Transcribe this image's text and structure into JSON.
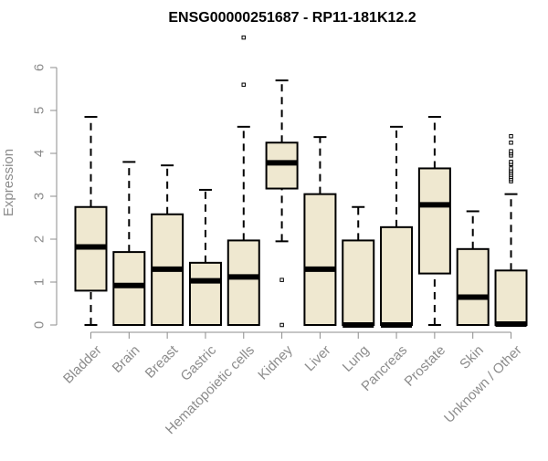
{
  "chart_data": {
    "type": "boxplot",
    "title": "ENSG00000251687 - RP11-181K12.2",
    "xlabel": "",
    "ylabel": "Expression",
    "ylim": [
      0,
      6
    ],
    "yticks": [
      "0",
      "1",
      "2",
      "3",
      "4",
      "5",
      "6"
    ],
    "grid": false,
    "box_fill": "#efe8d0",
    "categories": [
      "Bladder",
      "Brain",
      "Breast",
      "Gastric",
      "Hematopoietic cells",
      "Kidney",
      "Liver",
      "Lung",
      "Pancreas",
      "Prostate",
      "Skin",
      "Unknown / Other"
    ],
    "series": [
      {
        "q1": 0.8,
        "median": 1.82,
        "q3": 2.75,
        "whisker_low": 0.0,
        "whisker_high": 4.85,
        "outliers": []
      },
      {
        "q1": 0.0,
        "median": 0.92,
        "q3": 1.7,
        "whisker_low": 0.0,
        "whisker_high": 3.8,
        "outliers": []
      },
      {
        "q1": 0.0,
        "median": 1.3,
        "q3": 2.58,
        "whisker_low": 0.0,
        "whisker_high": 3.72,
        "outliers": []
      },
      {
        "q1": 0.0,
        "median": 1.03,
        "q3": 1.45,
        "whisker_low": 0.0,
        "whisker_high": 3.15,
        "outliers": []
      },
      {
        "q1": 0.0,
        "median": 1.12,
        "q3": 1.97,
        "whisker_low": 0.0,
        "whisker_high": 4.62,
        "outliers": [
          5.6,
          6.7
        ]
      },
      {
        "q1": 3.18,
        "median": 3.78,
        "q3": 4.25,
        "whisker_low": 1.95,
        "whisker_high": 5.7,
        "outliers": [
          1.05,
          0.0
        ]
      },
      {
        "q1": 0.0,
        "median": 1.3,
        "q3": 3.05,
        "whisker_low": 0.0,
        "whisker_high": 4.38,
        "outliers": []
      },
      {
        "q1": 0.0,
        "median": 0.0,
        "q3": 1.97,
        "whisker_low": 0.0,
        "whisker_high": 2.75,
        "outliers": []
      },
      {
        "q1": 0.0,
        "median": 0.0,
        "q3": 2.28,
        "whisker_low": 0.0,
        "whisker_high": 4.62,
        "outliers": []
      },
      {
        "q1": 1.2,
        "median": 2.8,
        "q3": 3.65,
        "whisker_low": 0.0,
        "whisker_high": 4.85,
        "outliers": []
      },
      {
        "q1": 0.0,
        "median": 0.65,
        "q3": 1.77,
        "whisker_low": 0.0,
        "whisker_high": 2.65,
        "outliers": []
      },
      {
        "q1": 0.0,
        "median": 0.02,
        "q3": 1.27,
        "whisker_low": 0.0,
        "whisker_high": 3.05,
        "outliers": [
          3.35,
          3.4,
          3.45,
          3.5,
          3.55,
          3.6,
          3.65,
          3.75,
          3.8,
          3.95,
          4.0,
          4.05,
          4.25,
          4.4
        ]
      }
    ]
  }
}
